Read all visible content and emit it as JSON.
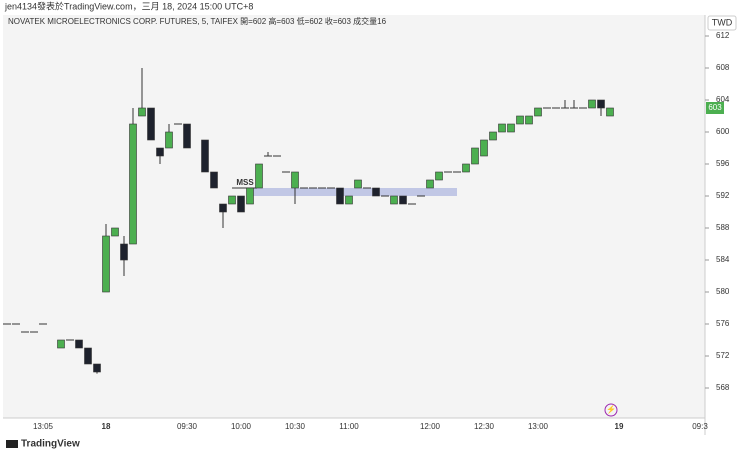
{
  "chart_data": {
    "type": "candlestick",
    "source_line": "jen4134發表於TradingView.com，三月 18, 2024 15:00 UTC+8",
    "title": "NOVATEK MICROELECTRONICS CORP. FUTURES, 5, TAIFEX  開=602 高=603 低=602 收=603 成交量16",
    "currency": "TWD",
    "annotation": "MSS",
    "brand": "TradingView",
    "categories": [
      null,
      null,
      null,
      null,
      "13:05",
      null,
      null,
      null,
      null,
      null,
      null,
      "18",
      null,
      null,
      null,
      null,
      null,
      null,
      null,
      null,
      "09:30",
      null,
      null,
      null,
      null,
      null,
      "10:00",
      null,
      null,
      null,
      null,
      null,
      "10:30",
      null,
      null,
      null,
      null,
      null,
      "11:00",
      null,
      null,
      null,
      null,
      null,
      null,
      null,
      null,
      "12:00",
      null,
      null,
      null,
      null,
      null,
      "12:30",
      null,
      null,
      null,
      null,
      null,
      "13:00",
      null,
      null,
      null,
      null,
      null,
      null,
      null,
      null,
      "19",
      null,
      null,
      null,
      null,
      null,
      null,
      null,
      null,
      "09:3"
    ],
    "open": [
      576,
      576,
      575,
      575,
      576,
      null,
      573,
      574,
      574,
      573,
      571,
      580,
      587,
      586,
      586,
      602,
      603,
      598,
      598,
      601,
      601,
      null,
      599,
      595,
      591,
      591,
      592,
      591,
      593,
      597,
      597,
      595,
      593,
      593,
      593,
      593,
      593,
      593,
      591,
      593,
      593,
      593,
      592,
      591,
      592,
      591,
      592,
      593,
      594,
      595,
      595,
      595,
      596,
      597,
      599,
      600,
      600,
      601,
      601,
      602,
      603,
      603,
      603,
      603,
      603,
      603,
      604,
      602,
      null,
      null,
      null,
      null,
      null,
      null,
      null,
      null,
      null,
      null
    ],
    "high": [
      576,
      576,
      575,
      575,
      576,
      null,
      574,
      574,
      574,
      573,
      571,
      588.5,
      588,
      587,
      603,
      608,
      603,
      598,
      601,
      601,
      601,
      null,
      599,
      595,
      591,
      592,
      592,
      593,
      596,
      597.5,
      597,
      595,
      595,
      593,
      593,
      593,
      593,
      593,
      592,
      594,
      593,
      593,
      592,
      592,
      592,
      591,
      592,
      594,
      595,
      595,
      595,
      596,
      598,
      599,
      600,
      601,
      601,
      602,
      602,
      603,
      603,
      603,
      604,
      604,
      603,
      604,
      604,
      603,
      null,
      null,
      null,
      null,
      null,
      null,
      null,
      null,
      null,
      null
    ],
    "low": [
      576,
      576,
      575,
      575,
      576,
      null,
      573,
      574,
      573,
      571,
      569.8,
      580,
      587,
      582,
      586,
      602,
      599,
      596,
      598,
      601,
      598,
      null,
      595,
      593,
      588,
      591,
      590,
      591,
      593,
      597,
      597,
      595,
      591,
      593,
      593,
      593,
      593,
      591,
      591,
      593,
      593,
      592,
      592,
      591,
      591,
      591,
      592,
      593,
      594,
      595,
      595,
      595,
      596,
      597,
      599,
      600,
      600,
      601,
      601,
      602,
      603,
      603,
      603,
      603,
      603,
      603,
      602,
      602,
      null,
      null,
      null,
      null,
      null,
      null,
      null,
      null,
      null,
      null
    ],
    "close": [
      576,
      576,
      575,
      575,
      576,
      null,
      574,
      574,
      573,
      571,
      570,
      587,
      588,
      584,
      601,
      603,
      599,
      597,
      600,
      601,
      598,
      null,
      595,
      593,
      590,
      592,
      590,
      593,
      596,
      597,
      597,
      595,
      595,
      593,
      593,
      593,
      593,
      591,
      592,
      594,
      593,
      592,
      592,
      592,
      591,
      591,
      592,
      594,
      595,
      595,
      595,
      596,
      598,
      599,
      600,
      601,
      601,
      602,
      602,
      603,
      603,
      603,
      603,
      603,
      603,
      604,
      603,
      603,
      null,
      null,
      null,
      null,
      null,
      null,
      null,
      null,
      null,
      null
    ],
    "up_color": "#4caf50",
    "down_color": "#1e222d",
    "ylim": [
      564.25,
      613
    ],
    "yticks": [
      568,
      572,
      576,
      580,
      584,
      588,
      592,
      596,
      600,
      604,
      608,
      612
    ]
  }
}
